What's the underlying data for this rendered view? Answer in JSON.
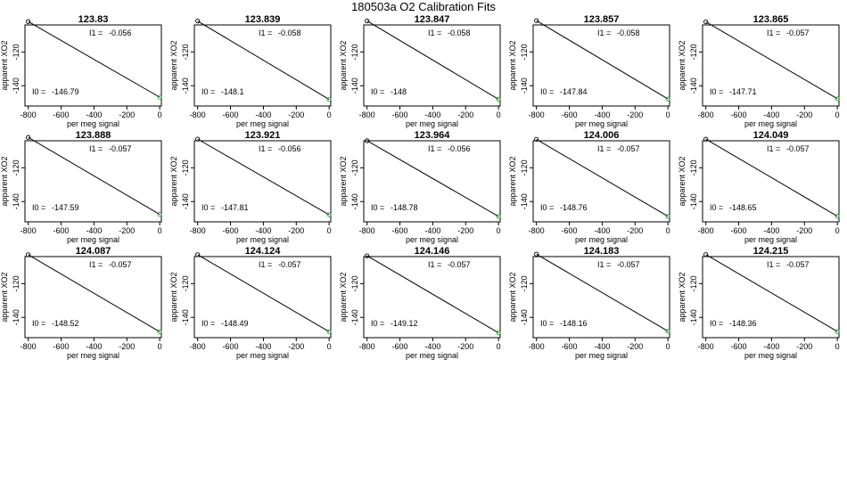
{
  "figure_title": "180503a   O2 Calibration Fits",
  "colors": {
    "line": "#000000",
    "first_point": "#000000",
    "last_point": "#22aa22",
    "box": "#000000"
  },
  "chart_data": {
    "type": "scatter",
    "title": "180503a   O2 Calibration Fits",
    "xlabel": "per meg signal",
    "ylabel": "apparent XO2",
    "xlim": [
      -820,
      10
    ],
    "ylim": [
      -152,
      -104
    ],
    "xticks": [
      -800,
      -600,
      -400,
      -200,
      0
    ],
    "yticks": [
      -120,
      -140
    ],
    "point_x": [
      -800,
      0
    ],
    "i0_label": "I0 =",
    "i1_label": "I1 =",
    "panels": [
      {
        "title": "123.83",
        "I0": "-146.79",
        "I1": "-0.056",
        "i0": -146.79,
        "i1": -0.056
      },
      {
        "title": "123.839",
        "I0": "-148.1",
        "I1": "-0.058",
        "i0": -148.1,
        "i1": -0.058
      },
      {
        "title": "123.847",
        "I0": "-148",
        "I1": "-0.058",
        "i0": -148,
        "i1": -0.058
      },
      {
        "title": "123.857",
        "I0": "-147.84",
        "I1": "-0.058",
        "i0": -147.84,
        "i1": -0.058
      },
      {
        "title": "123.865",
        "I0": "-147.71",
        "I1": "-0.057",
        "i0": -147.71,
        "i1": -0.057
      },
      {
        "title": "123.888",
        "I0": "-147.59",
        "I1": "-0.057",
        "i0": -147.59,
        "i1": -0.057
      },
      {
        "title": "123.921",
        "I0": "-147.81",
        "I1": "-0.056",
        "i0": -147.81,
        "i1": -0.056
      },
      {
        "title": "123.964",
        "I0": "-148.78",
        "I1": "-0.056",
        "i0": -148.78,
        "i1": -0.056
      },
      {
        "title": "124.006",
        "I0": "-148.76",
        "I1": "-0.057",
        "i0": -148.76,
        "i1": -0.057
      },
      {
        "title": "124.049",
        "I0": "-148.65",
        "I1": "-0.057",
        "i0": -148.65,
        "i1": -0.057
      },
      {
        "title": "124.087",
        "I0": "-148.52",
        "I1": "-0.057",
        "i0": -148.52,
        "i1": -0.057
      },
      {
        "title": "124.124",
        "I0": "-148.49",
        "I1": "-0.057",
        "i0": -148.49,
        "i1": -0.057
      },
      {
        "title": "124.146",
        "I0": "-149.12",
        "I1": "-0.057",
        "i0": -149.12,
        "i1": -0.057
      },
      {
        "title": "124.183",
        "I0": "-148.16",
        "I1": "-0.057",
        "i0": -148.16,
        "i1": -0.057
      },
      {
        "title": "124.215",
        "I0": "-148.36",
        "I1": "-0.057",
        "i0": -148.36,
        "i1": -0.057
      }
    ]
  }
}
